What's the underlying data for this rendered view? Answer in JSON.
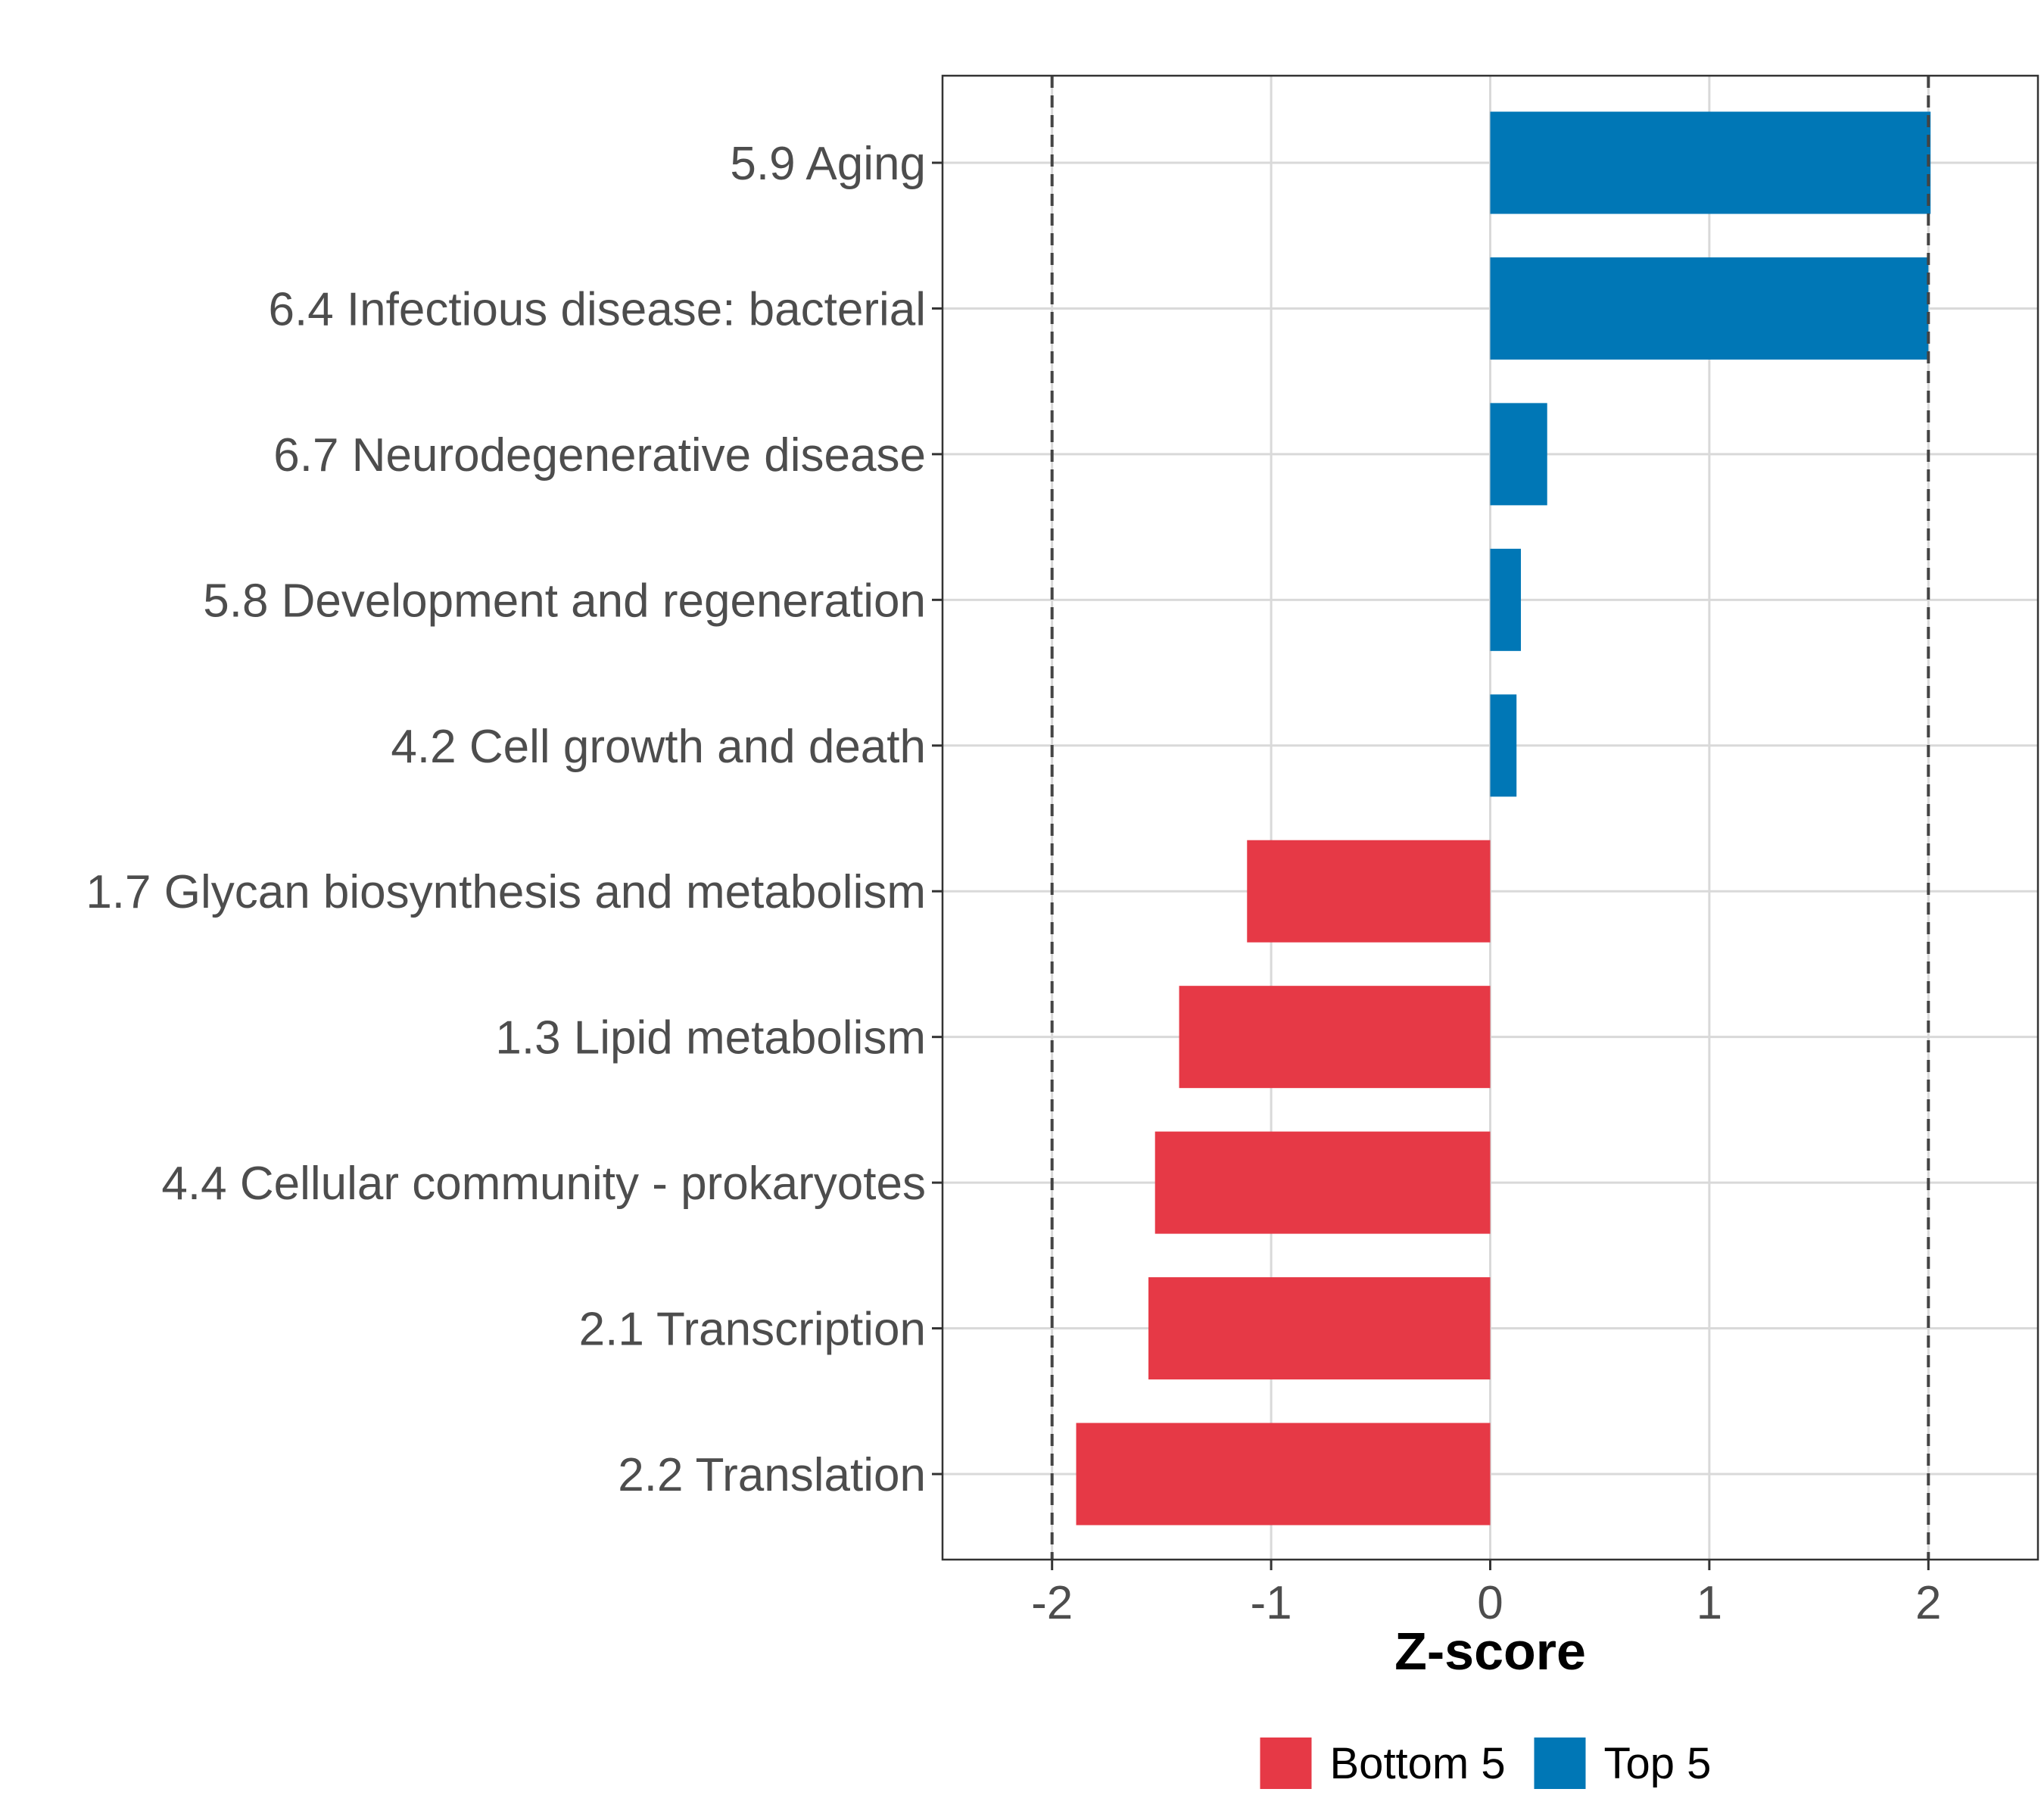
{
  "chart_data": {
    "type": "bar",
    "orientation": "horizontal",
    "title": "",
    "xlabel": "Z-score",
    "ylabel": "",
    "xlim": [
      -2.5,
      2.5
    ],
    "x_ticks": [
      -2,
      -1,
      0,
      1,
      2
    ],
    "x_tick_labels": [
      "-2",
      "-1",
      "0",
      "1",
      "2"
    ],
    "reference_lines": [
      -2,
      2
    ],
    "grid": true,
    "categories": [
      "5.9 Aging",
      "6.4 Infectious disease: bacterial",
      "6.7 Neurodegenerative disease",
      "5.8 Development and regeneration",
      "4.2 Cell growth and death",
      "1.7 Glycan biosynthesis and metabolism",
      "1.3 Lipid metabolism",
      "4.4 Cellular community - prokaryotes",
      "2.1 Transcription",
      "2.2 Translation"
    ],
    "values": [
      2.01,
      2.0,
      0.26,
      0.14,
      0.12,
      -1.11,
      -1.42,
      -1.53,
      -1.56,
      -1.89
    ],
    "groups": [
      "Top 5",
      "Top 5",
      "Top 5",
      "Top 5",
      "Top 5",
      "Bottom 5",
      "Bottom 5",
      "Bottom 5",
      "Bottom 5",
      "Bottom 5"
    ],
    "legend": [
      {
        "name": "Bottom 5",
        "color": "#E63946"
      },
      {
        "name": "Top 5",
        "color": "#0077B6"
      }
    ],
    "legend_position": "bottom"
  }
}
